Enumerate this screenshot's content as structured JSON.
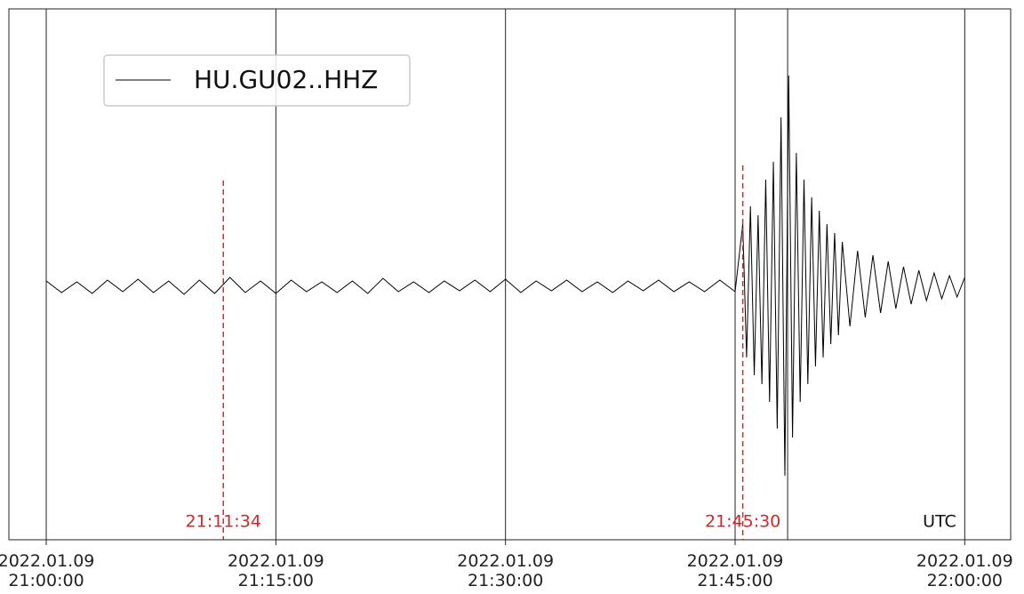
{
  "chart_data": {
    "type": "line",
    "xlim": [
      -2.44,
      63.0
    ],
    "ylim": [
      -2.85,
      3.12
    ],
    "xticks": [
      {
        "value": 0,
        "label": "2022.01.09\n21:00:00"
      },
      {
        "value": 15,
        "label": "2022.01.09\n21:15:00"
      },
      {
        "value": 30,
        "label": "2022.01.09\n21:30:00"
      },
      {
        "value": 45,
        "label": "2022.01.09\n21:45:00"
      },
      {
        "value": 60,
        "label": "2022.01.09\n22:00:00"
      }
    ],
    "grid": true,
    "vlines": [
      48.43
    ],
    "markers": [
      {
        "x": 11.567,
        "label": "21:11:34",
        "color": "#d62728"
      },
      {
        "x": 45.5,
        "label": "21:45:30",
        "color": "#d62728"
      }
    ],
    "annotation": "UTC",
    "legend": "upper left",
    "x": [
      0,
      1,
      2,
      3,
      4,
      5,
      6,
      7,
      8,
      9,
      10,
      11,
      12,
      13,
      14,
      15,
      16,
      17,
      18,
      19,
      20,
      21,
      22,
      23,
      24,
      25,
      26,
      27,
      28,
      29,
      30,
      31,
      32,
      33,
      34,
      35,
      36,
      37,
      38,
      39,
      40,
      41,
      42,
      43,
      44,
      45,
      45.5,
      45.75,
      46,
      46.25,
      46.5,
      46.75,
      47,
      47.25,
      47.5,
      47.75,
      48,
      48.25,
      48.5,
      48.75,
      49,
      49.25,
      49.5,
      49.75,
      50,
      50.25,
      50.5,
      50.75,
      51,
      51.25,
      51.5,
      51.75,
      52,
      52.5,
      53,
      53.5,
      54,
      54.5,
      55,
      55.5,
      56,
      56.5,
      57,
      57.5,
      58,
      58.5,
      59,
      59.5,
      60
    ],
    "series": [
      {
        "name": "HU.GU02..HHZ",
        "color": "#000000",
        "values": [
          0.06,
          -0.07,
          0.05,
          -0.08,
          0.07,
          -0.06,
          0.08,
          -0.07,
          0.06,
          -0.09,
          0.07,
          -0.08,
          0.1,
          -0.07,
          0.06,
          -0.08,
          0.07,
          -0.06,
          0.05,
          -0.07,
          0.06,
          -0.08,
          0.09,
          -0.06,
          0.05,
          -0.07,
          0.06,
          -0.05,
          0.07,
          -0.06,
          0.08,
          -0.07,
          0.06,
          -0.05,
          0.07,
          -0.06,
          0.05,
          -0.07,
          0.06,
          -0.05,
          0.07,
          -0.06,
          0.05,
          -0.06,
          0.07,
          -0.06,
          0.7,
          -0.8,
          0.9,
          -1.0,
          0.8,
          -1.1,
          1.2,
          -1.3,
          1.4,
          -1.6,
          1.9,
          -2.13,
          2.37,
          -1.7,
          1.5,
          -1.3,
          1.2,
          -1.1,
          1.0,
          -0.9,
          0.85,
          -0.8,
          0.7,
          -0.65,
          0.6,
          -0.55,
          0.5,
          -0.45,
          0.4,
          -0.35,
          0.35,
          -0.3,
          0.28,
          -0.25,
          0.22,
          -0.2,
          0.18,
          -0.16,
          0.15,
          -0.14,
          0.12,
          -0.12,
          0.1
        ]
      }
    ]
  }
}
